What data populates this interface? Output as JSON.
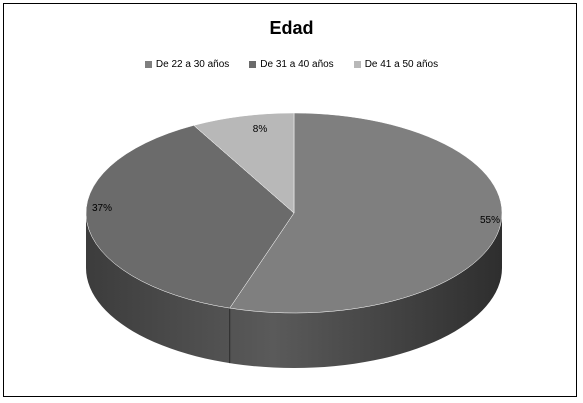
{
  "chart_data": {
    "type": "pie",
    "title": "Edad",
    "legend_position": "top",
    "slices": [
      {
        "label": "De 22 a 30 años",
        "value": 55,
        "display": "55%",
        "color": "#7f7f7f"
      },
      {
        "label": "De 31 a 40 años",
        "value": 37,
        "display": "37%",
        "color": "#6b6b6b"
      },
      {
        "label": "De 41 a 50 años",
        "value": 8,
        "display": "8%",
        "color": "#b8b8b8"
      }
    ]
  }
}
